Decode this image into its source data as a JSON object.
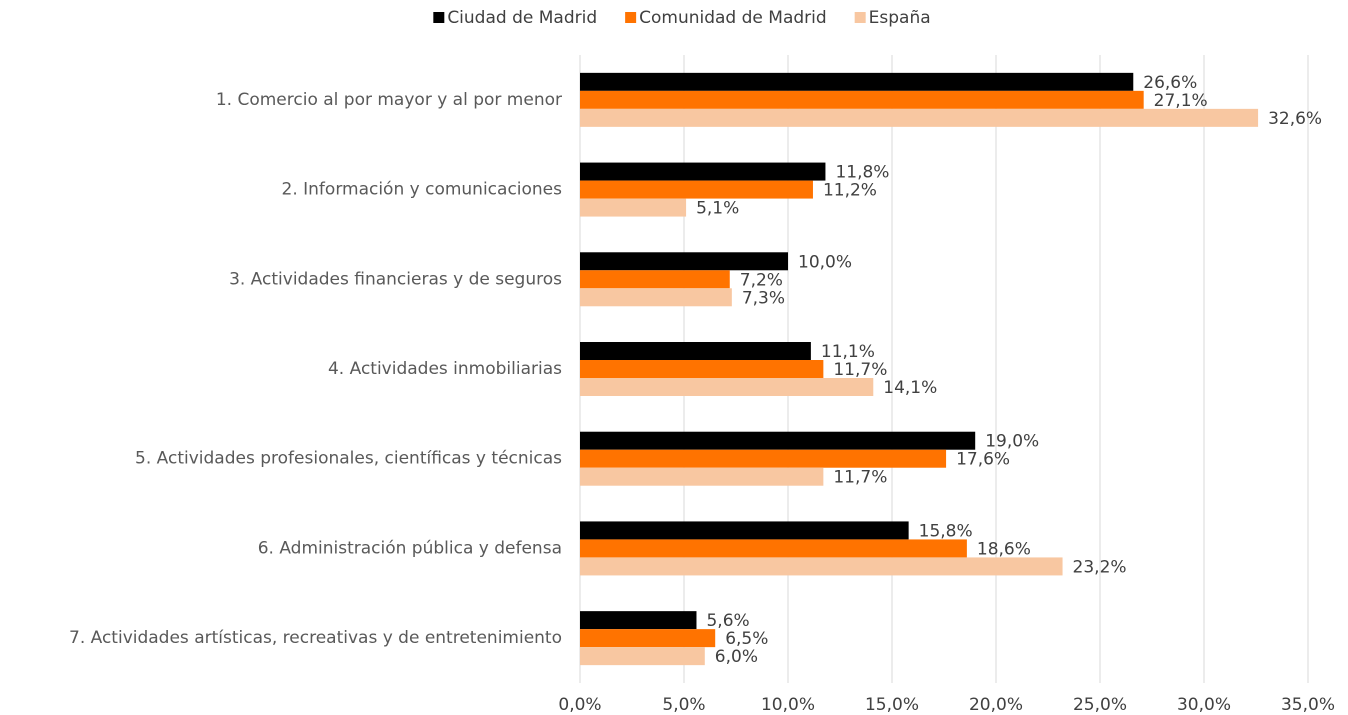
{
  "chart_data": {
    "type": "hbar",
    "categories": [
      "1. Comercio al por mayor y al por menor",
      "2. Información y comunicaciones",
      "3. Actividades financieras y de seguros",
      "4. Actividades inmobiliarias",
      "5. Actividades profesionales, científicas y técnicas",
      "6. Administración pública y defensa",
      "7. Actividades artísticas, recreativas y de entretenimiento"
    ],
    "series": [
      {
        "name": "Ciudad de Madrid",
        "color": "#000000",
        "values": [
          26.6,
          11.8,
          10.0,
          11.1,
          19.0,
          15.8,
          5.6
        ],
        "value_labels": [
          "26,6%",
          "11,8%",
          "10,0%",
          "11,1%",
          "19,0%",
          "15,8%",
          "5,6%"
        ]
      },
      {
        "name": "Comunidad de Madrid",
        "color": "#ff7300",
        "values": [
          27.1,
          11.2,
          7.2,
          11.7,
          17.6,
          18.6,
          6.5
        ],
        "value_labels": [
          "27,1%",
          "11,2%",
          "7,2%",
          "11,7%",
          "17,6%",
          "18,6%",
          "6,5%"
        ]
      },
      {
        "name": "España",
        "color": "#f8c7a1",
        "values": [
          32.6,
          5.1,
          7.3,
          14.1,
          11.7,
          23.2,
          6.0
        ],
        "value_labels": [
          "32,6%",
          "5,1%",
          "7,3%",
          "14,1%",
          "11,7%",
          "23,2%",
          "6,0%"
        ]
      }
    ],
    "xlim": [
      0,
      35
    ],
    "xticks": [
      {
        "value": 0,
        "label": "0,0%"
      },
      {
        "value": 5,
        "label": "5,0%"
      },
      {
        "value": 10,
        "label": "10,0%"
      },
      {
        "value": 15,
        "label": "15,0%"
      },
      {
        "value": 20,
        "label": "20,0%"
      },
      {
        "value": 25,
        "label": "25,0%"
      },
      {
        "value": 30,
        "label": "30,0%"
      },
      {
        "value": 35,
        "label": "35,0%"
      }
    ],
    "grid": true,
    "legend": "top"
  }
}
